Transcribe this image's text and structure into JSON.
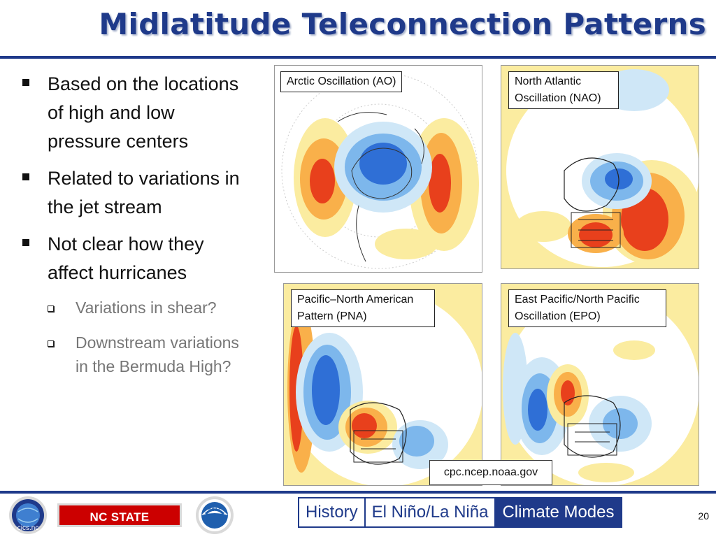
{
  "slide": {
    "title": "Midlatitude Teleconnection Patterns",
    "page_number": "20"
  },
  "bullets": [
    {
      "text": "Based on the locations of high and low pressure centers",
      "level": 1
    },
    {
      "text": "Related to variations in the jet stream",
      "level": 1
    },
    {
      "text": "Not clear how they affect hurricanes",
      "level": 1
    },
    {
      "text": "Variations in shear?",
      "level": 2
    },
    {
      "text": "Downstream variations in the Bermuda High?",
      "level": 2
    }
  ],
  "maps": {
    "ao": {
      "label": "Arctic Oscillation (AO)"
    },
    "nao": {
      "label": "North Atlantic Oscillation (NAO)"
    },
    "pna": {
      "label": "Pacific–North American Pattern (PNA)"
    },
    "epo": {
      "label": "East Pacific/North Pacific Oscillation (EPO)"
    }
  },
  "source": "cpc.ncep.noaa.gov",
  "logos": {
    "cics": "cics.nc",
    "ncsu": "NC STATE UNIVERSITY",
    "noaa": "NOAA"
  },
  "nav": {
    "tabs": [
      {
        "label": "History",
        "active": false
      },
      {
        "label": "El Niño/La Niña",
        "active": false
      },
      {
        "label": "Climate Modes",
        "active": true
      }
    ]
  },
  "colors": {
    "title_blue": "#1f3a8a",
    "positive_anomaly": "#e8401c",
    "negative_anomaly": "#2f6fd6",
    "ncsu_red": "#cc0000"
  }
}
